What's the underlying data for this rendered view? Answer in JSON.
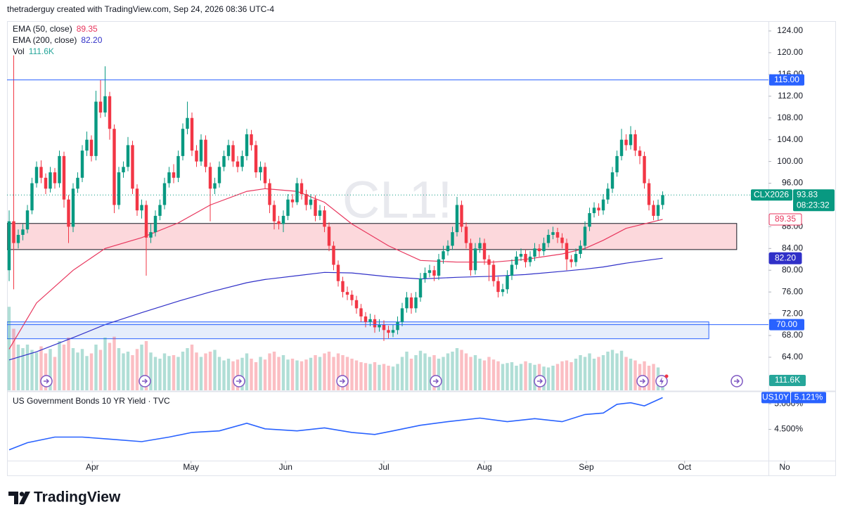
{
  "header": "thetraderguy created with TradingView.com, Sep 24, 2026 08:36 UTC-4",
  "footer_logo": "TradingView",
  "chart_data": [
    {
      "type": "candlestick",
      "watermark": "CL1!",
      "up_color": "#089981",
      "down_color": "#f23645",
      "xlim": [
        -0.46,
        166.15
      ],
      "xticks": [
        {
          "value": 18.2,
          "label": "Apr"
        },
        {
          "value": 39.8,
          "label": "May"
        },
        {
          "value": 60.5,
          "label": "Jun"
        },
        {
          "value": 82,
          "label": "Jul"
        },
        {
          "value": 104,
          "label": "Aug"
        },
        {
          "value": 126.3,
          "label": "Sep"
        },
        {
          "value": 147.8,
          "label": "Oct"
        },
        {
          "value": 169.7,
          "label": "No"
        }
      ],
      "ylim": [
        57.92,
        125.81
      ],
      "yticks": [
        {
          "value": 124,
          "label": "124.00"
        },
        {
          "value": 120,
          "label": "120.00"
        },
        {
          "value": 116,
          "label": "116.00"
        },
        {
          "value": 112,
          "label": "112.00"
        },
        {
          "value": 108,
          "label": "108.00"
        },
        {
          "value": 104,
          "label": "104.00"
        },
        {
          "value": 100,
          "label": "100.00"
        },
        {
          "value": 96,
          "label": "96.00"
        },
        {
          "value": 88,
          "label": "88.00"
        },
        {
          "value": 84,
          "label": "84.00"
        },
        {
          "value": 80,
          "label": "80.00"
        },
        {
          "value": 76,
          "label": "76.00"
        },
        {
          "value": 72,
          "label": "72.00"
        },
        {
          "value": 68,
          "label": "68.00"
        },
        {
          "value": 64,
          "label": "64.00"
        }
      ],
      "grid": false,
      "open": [
        80,
        89,
        85,
        86.5,
        87.5,
        91,
        96,
        99,
        97,
        95,
        98,
        96,
        101,
        93,
        88,
        95,
        97,
        102,
        104,
        101,
        111,
        109,
        112,
        106,
        92,
        98,
        99,
        103,
        95,
        91,
        92,
        86,
        87,
        90,
        92,
        96,
        98,
        97,
        101,
        106,
        108,
        102,
        100,
        104,
        99,
        95,
        96,
        99,
        101,
        103,
        100,
        99,
        101,
        105,
        103,
        98,
        99,
        96,
        92,
        89,
        88.5,
        90,
        93,
        92.5,
        96,
        94,
        92,
        93,
        90,
        91,
        88,
        84.5,
        81,
        78,
        76,
        75.5,
        74.5,
        73,
        71.5,
        70.5,
        71,
        69.5,
        70,
        69,
        68.5,
        69,
        70.5,
        73,
        75,
        73,
        75,
        78.5,
        79.5,
        80,
        79,
        82,
        83.5,
        84.5,
        87,
        92,
        88,
        85,
        80,
        84,
        85,
        82,
        81,
        78,
        76,
        76.5,
        79,
        81,
        82.5,
        83,
        81.5,
        82.5,
        84,
        83.5,
        85,
        86.5,
        87,
        86,
        85,
        82,
        81.5,
        83,
        84.5,
        88,
        90.5,
        91.5,
        91,
        93,
        95,
        98,
        101,
        104,
        103,
        105,
        102,
        101,
        96,
        92,
        90,
        92
      ],
      "high": [
        91,
        119.5,
        87.5,
        88.5,
        92,
        97,
        100,
        100.2,
        97.8,
        99,
        98.8,
        102,
        101.8,
        93.8,
        96,
        98,
        103,
        105.5,
        104.8,
        113,
        115,
        117.5,
        112.8,
        106.8,
        99,
        100,
        104.5,
        103.8,
        95.8,
        93,
        92.8,
        88.5,
        91,
        93,
        97,
        99,
        99.5,
        102,
        107,
        111,
        109,
        103,
        105,
        104.8,
        99.8,
        97,
        100,
        102,
        104,
        103.8,
        101,
        102,
        106,
        105.8,
        103.8,
        100,
        99.8,
        96.8,
        92.8,
        90,
        91,
        94,
        94,
        97,
        96.8,
        94.8,
        94,
        93.8,
        92,
        91.8,
        88.8,
        85.3,
        81.8,
        78.8,
        77,
        76.3,
        75.3,
        73.8,
        72.3,
        72,
        71.8,
        71,
        70.8,
        69.8,
        70,
        71.5,
        74,
        76,
        75.8,
        76,
        79.5,
        80.5,
        81,
        80.8,
        83,
        84.5,
        85.5,
        88,
        93.5,
        92.8,
        88.8,
        85.8,
        85,
        86,
        85.8,
        82.8,
        81.8,
        78.8,
        77.5,
        80,
        82,
        83.5,
        84,
        83.8,
        83.5,
        85,
        84.8,
        86,
        87.5,
        88,
        87.8,
        86.8,
        85.8,
        82.8,
        84,
        85.5,
        89,
        91.5,
        92.5,
        92.3,
        94,
        96,
        99,
        102,
        106,
        105,
        106.5,
        105.8,
        102.8,
        101.8,
        96.8,
        92.8,
        93,
        94.5
      ],
      "low": [
        78,
        76.5,
        84,
        85.5,
        86.8,
        90.3,
        95.2,
        96,
        94,
        94.3,
        95,
        95.2,
        91.5,
        85,
        87,
        94.2,
        96.2,
        101,
        100,
        100.2,
        108,
        108.2,
        104,
        90.5,
        91.2,
        97,
        98.2,
        94,
        90,
        89.5,
        79,
        85,
        86.2,
        89.2,
        91.2,
        95.2,
        96,
        96.2,
        100.2,
        105,
        101,
        99,
        99.2,
        98,
        89,
        94,
        95.2,
        98.2,
        100.2,
        99,
        98,
        98.2,
        100.2,
        102,
        97,
        96.5,
        95,
        90.5,
        87.5,
        87.5,
        87,
        89.2,
        91.5,
        92,
        93,
        91,
        91.2,
        89,
        89.2,
        87,
        83.5,
        80,
        77,
        75,
        74.5,
        73.5,
        72,
        70.5,
        69.5,
        69.7,
        68.5,
        68.7,
        67,
        67.5,
        67.7,
        68.2,
        69.7,
        72.2,
        72,
        72.2,
        74.2,
        77.7,
        78.7,
        78,
        78.2,
        81.2,
        82.7,
        83.7,
        86.2,
        87,
        84,
        79,
        79.2,
        83.2,
        81,
        78,
        77,
        75,
        75.2,
        75.7,
        78.2,
        80.2,
        81.7,
        80.5,
        80.7,
        81.7,
        82.5,
        82.7,
        84.2,
        85.7,
        85,
        84,
        80,
        80.5,
        80.7,
        82.2,
        83.7,
        87.2,
        89.7,
        90,
        90.2,
        92.2,
        94.2,
        97.2,
        100.2,
        102,
        102.2,
        101,
        99.5,
        95,
        91,
        89.2,
        89.2,
        91.2
      ],
      "close": [
        89,
        85,
        86.5,
        87.5,
        91,
        96,
        99,
        97,
        95,
        98,
        96,
        101,
        93,
        88,
        95,
        97,
        102,
        104,
        101,
        111,
        109,
        112,
        106,
        92,
        98,
        99,
        103,
        95,
        91,
        92,
        86,
        87,
        90,
        92,
        96,
        98,
        97,
        101,
        106,
        108,
        102,
        100,
        104,
        99,
        95,
        96,
        99,
        101,
        103,
        100,
        99,
        101,
        105,
        103,
        98,
        99,
        96,
        92,
        89,
        88.5,
        90,
        93,
        92.5,
        96,
        94,
        92,
        93,
        90,
        91,
        88,
        84.5,
        81,
        78,
        76,
        75.5,
        74.5,
        73,
        71.5,
        70.5,
        71,
        69.5,
        70,
        69,
        68.5,
        69,
        70.5,
        73,
        75,
        73,
        75,
        78.5,
        79.5,
        80,
        79,
        82,
        83.5,
        84.5,
        87,
        92,
        88,
        85,
        80,
        84,
        85,
        82,
        81,
        78,
        76,
        76.5,
        79,
        81,
        82.5,
        83,
        81.5,
        82.5,
        84,
        83.5,
        85,
        86.5,
        87,
        86,
        85,
        82,
        81.5,
        83,
        84.5,
        88,
        90.5,
        91.5,
        91,
        93,
        95,
        98,
        101,
        104,
        103,
        105,
        102,
        101,
        96,
        92,
        90,
        92,
        93.83
      ],
      "volume": {
        "name": "Vol",
        "last_label": "111.6K",
        "badge_color": "#26a69a",
        "up_color": "#089981",
        "down_color": "#f23645",
        "lim": [
          0,
          1200
        ],
        "values": [
          950,
          700,
          520,
          480,
          520,
          460,
          430,
          500,
          420,
          470,
          380,
          560,
          520,
          600,
          480,
          430,
          470,
          390,
          420,
          520,
          460,
          600,
          540,
          610,
          480,
          420,
          440,
          400,
          470,
          520,
          560,
          430,
          380,
          360,
          420,
          390,
          400,
          380,
          440,
          480,
          520,
          430,
          380,
          420,
          440,
          460,
          380,
          340,
          360,
          330,
          350,
          370,
          420,
          360,
          320,
          380,
          350,
          420,
          440,
          380,
          400,
          350,
          360,
          340,
          330,
          350,
          370,
          400,
          380,
          420,
          440,
          380,
          420,
          400,
          380,
          360,
          340,
          320,
          310,
          300,
          320,
          290,
          300,
          280,
          270,
          300,
          380,
          440,
          360,
          400,
          450,
          420,
          380,
          400,
          360,
          380,
          420,
          440,
          480,
          460,
          420,
          380,
          400,
          360,
          340,
          380,
          350,
          330,
          300,
          310,
          320,
          280,
          300,
          330,
          310,
          290,
          300,
          270,
          260,
          280,
          300,
          330,
          340,
          320,
          360,
          400,
          380,
          420,
          360,
          380,
          400,
          440,
          460,
          420,
          450,
          380,
          360,
          340,
          300,
          330,
          280,
          300,
          260,
          111.6
        ]
      },
      "series": [
        {
          "name": "EMA (50, close)",
          "color": "#e8365d",
          "last_label": "89.35",
          "x": [
            0,
            6,
            14,
            21,
            29,
            37,
            44,
            52,
            56,
            63,
            69,
            75,
            83,
            90,
            98,
            106,
            113,
            121,
            126,
            130,
            135,
            143
          ],
          "values": [
            65.5,
            74,
            80,
            84,
            86,
            88.7,
            92,
            94.5,
            95,
            94.5,
            92.5,
            88.5,
            84.5,
            81.8,
            81.5,
            81.5,
            82,
            83,
            84,
            85.5,
            87.7,
            89.35
          ]
        },
        {
          "name": "EMA (200, close)",
          "color": "#3030c8",
          "last_label": "82.20",
          "x": [
            0,
            6,
            14,
            21,
            29,
            37,
            44,
            52,
            56,
            63,
            69,
            75,
            83,
            90,
            98,
            106,
            113,
            121,
            126,
            130,
            135,
            143
          ],
          "values": [
            63.5,
            65,
            67.6,
            70,
            72.2,
            74.3,
            76,
            77.7,
            78.3,
            79,
            79.6,
            79.5,
            78.8,
            78.4,
            78.7,
            78.9,
            79.2,
            79.8,
            80.2,
            80.6,
            81.3,
            82.2
          ]
        }
      ],
      "levels": [
        {
          "value": 115,
          "label": "115.00",
          "color": "#2962ff"
        },
        {
          "value": 70,
          "label": "70.00",
          "color": "#2962ff"
        }
      ],
      "zones": [
        {
          "top": 88.6,
          "bottom": 83.8,
          "end": 159.2,
          "fill": "#fcd8dc",
          "stroke": "#131722"
        },
        {
          "top": 70.5,
          "bottom": 67.4,
          "end": 153.1,
          "fill": "#e5edfb",
          "stroke": "#2962ff"
        }
      ],
      "price_label": {
        "name": "CLX2026",
        "value": 93.83,
        "countdown": "08:23:32",
        "color": "#089981"
      }
    },
    {
      "type": "line",
      "title": "US Government Bonds 10 YR Yield · TVC",
      "color": "#2962ff",
      "ylim": [
        3.889,
        5.236
      ],
      "yticks": [
        {
          "value": 5,
          "label": "5.000%"
        },
        {
          "value": 4.5,
          "label": "4.500%"
        }
      ],
      "x": [
        0,
        4,
        10,
        16,
        22,
        29,
        35,
        40,
        46,
        52,
        56,
        63,
        69,
        75,
        80,
        84,
        90,
        96,
        103,
        109,
        115,
        121,
        126,
        130,
        133,
        136,
        139,
        143
      ],
      "values": [
        4.1,
        4.24,
        4.35,
        4.35,
        4.31,
        4.26,
        4.35,
        4.44,
        4.47,
        4.62,
        4.51,
        4.47,
        4.53,
        4.44,
        4.4,
        4.47,
        4.58,
        4.65,
        4.72,
        4.65,
        4.71,
        4.65,
        4.79,
        4.82,
        4.99,
        5.02,
        4.96,
        5.121
      ],
      "badge": {
        "name": "US10Y",
        "label": "5.121%"
      }
    }
  ]
}
